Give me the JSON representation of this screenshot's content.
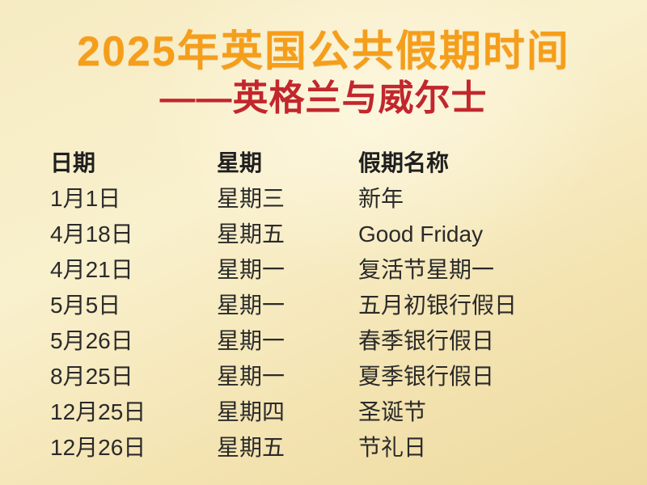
{
  "page": {
    "title": "2025年英国公共假期时间",
    "subtitle": "——英格兰与威尔士"
  },
  "colors": {
    "title_orange": "#f59e1b",
    "subtitle_red": "#c1272d",
    "text_dark": "#2a2a2a",
    "background_light": "#f9f0cd",
    "background_dark": "#eedaa1"
  },
  "table": {
    "headers": [
      "日期",
      "星期",
      "假期名称"
    ],
    "rows": [
      [
        "1月1日",
        "星期三",
        "新年"
      ],
      [
        "4月18日",
        "星期五",
        "Good Friday"
      ],
      [
        "4月21日",
        "星期一",
        "复活节星期一"
      ],
      [
        "5月5日",
        "星期一",
        "五月初银行假日"
      ],
      [
        "5月26日",
        "星期一",
        "春季银行假日"
      ],
      [
        "8月25日",
        "星期一",
        "夏季银行假日"
      ],
      [
        "12月25日",
        "星期四",
        "圣诞节"
      ],
      [
        "12月26日",
        "星期五",
        "节礼日"
      ]
    ]
  }
}
